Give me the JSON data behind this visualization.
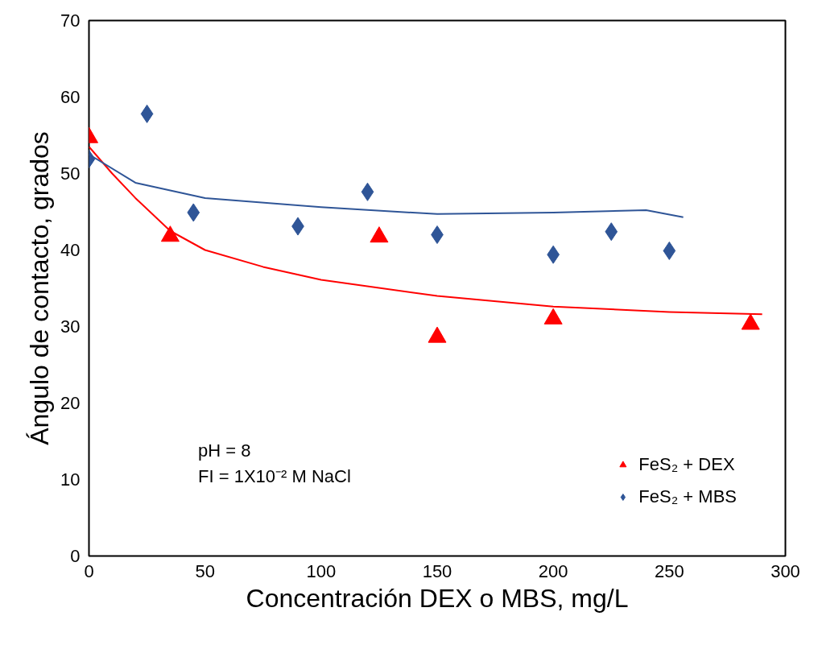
{
  "chart_data": {
    "type": "scatter",
    "xlabel": "Concentración DEX o MBS, mg/L",
    "ylabel": "Ángulo de contacto, grados",
    "xlim": [
      0,
      300
    ],
    "ylim": [
      0,
      70
    ],
    "xticks": [
      0,
      50,
      100,
      150,
      200,
      250,
      300
    ],
    "yticks": [
      0,
      10,
      20,
      30,
      40,
      50,
      60,
      70
    ],
    "grid": false,
    "legend": "bottom right",
    "annotations": [
      "pH = 8",
      "FI = 1X10⁻² M NaCl"
    ],
    "series": [
      {
        "name": "FeS₂ + DEX",
        "marker": "triangle",
        "color": "#ff0000",
        "x": [
          0,
          35,
          125,
          150,
          200,
          285
        ],
        "values": [
          54.7,
          41.8,
          41.7,
          28.6,
          31.0,
          30.3
        ]
      },
      {
        "name": "FeS₂ + MBS",
        "marker": "diamond",
        "color": "#2f5597",
        "x": [
          0,
          25,
          45,
          90,
          120,
          150,
          200,
          225,
          250
        ],
        "values": [
          51.9,
          57.8,
          44.9,
          43.1,
          47.6,
          42.0,
          39.4,
          42.4,
          39.9
        ]
      },
      {
        "type": "line",
        "color": "#ff0000",
        "x": [
          0,
          10,
          20,
          35,
          50,
          75,
          100,
          150,
          200,
          250,
          290
        ],
        "values": [
          53.5,
          50.0,
          46.8,
          42.5,
          40.0,
          37.8,
          36.1,
          34.0,
          32.6,
          31.9,
          31.6
        ]
      },
      {
        "type": "line",
        "color": "#2f5597",
        "x": [
          0,
          20,
          50,
          100,
          150,
          200,
          240,
          256
        ],
        "values": [
          52.5,
          48.8,
          46.8,
          45.6,
          44.7,
          44.9,
          45.2,
          44.3
        ]
      }
    ]
  }
}
